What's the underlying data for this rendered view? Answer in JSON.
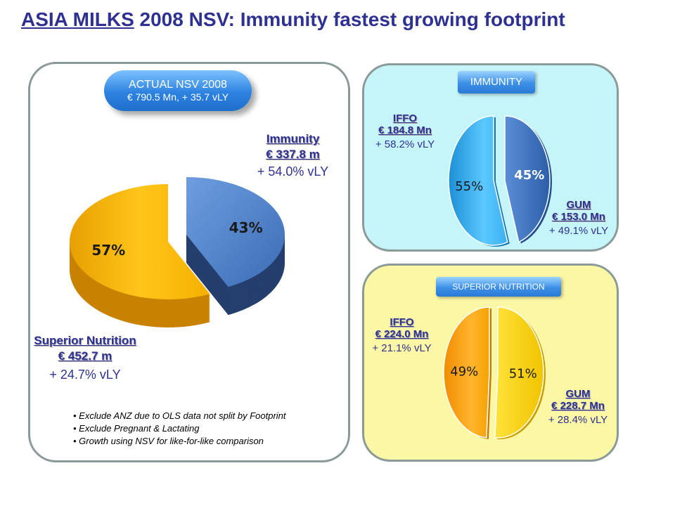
{
  "title": {
    "underlined": "ASIA MILKS",
    "rest": " 2008 NSV: Immunity fastest growing footprint"
  },
  "actual": {
    "line1": "ACTUAL NSV 2008",
    "line2": "€ 790.5 Mn, + 35.7 vLY"
  },
  "main_labels": {
    "immunity": {
      "name": "Immunity",
      "value": "€ 337.8 m",
      "growth": "+ 54.0% vLY"
    },
    "superior": {
      "name": "Superior Nutrition",
      "value": "€ 452.7 m",
      "growth": "+ 24.7% vLY"
    }
  },
  "immunity_panel": {
    "tag": "IMMUNITY",
    "ffo": {
      "name": "IFFO",
      "value": "€ 184.8 Mn",
      "growth": "+ 58.2% vLY"
    },
    "gum": {
      "name": "GUM",
      "value": "€ 153.0 Mn",
      "growth": "+ 49.1% vLY"
    }
  },
  "superior_panel": {
    "tag": "SUPERIOR NUTRITION",
    "ffo": {
      "name": "IFFO",
      "value": "€ 224.0 Mn",
      "growth": "+ 21.1% vLY"
    },
    "gum": {
      "name": "GUM",
      "value": "€ 228.7 Mn",
      "growth": "+ 28.4% vLY"
    }
  },
  "notes": [
    "Exclude ANZ due to OLS data not split by Footprint",
    "Exclude Pregnant & Lactating",
    "Growth using NSV for like-for-like comparison"
  ],
  "chart_data": [
    {
      "type": "pie",
      "title": "ACTUAL NSV 2008",
      "categories": [
        "Immunity",
        "Superior Nutrition"
      ],
      "values": [
        43,
        57
      ],
      "labels": [
        "43%",
        "57%"
      ],
      "colors": [
        "#4a7cc4",
        "#f7b800"
      ]
    },
    {
      "type": "pie",
      "title": "IMMUNITY",
      "categories": [
        "GUM",
        "IFFO"
      ],
      "values": [
        45,
        55
      ],
      "labels": [
        "45%",
        "55%"
      ],
      "colors": [
        "#3f77c0",
        "#2faae8"
      ]
    },
    {
      "type": "pie",
      "title": "SUPERIOR NUTRITION",
      "categories": [
        "GUM",
        "IFFO"
      ],
      "values": [
        51,
        49
      ],
      "labels": [
        "51%",
        "49%"
      ],
      "colors": [
        "#f8d000",
        "#f8a000"
      ]
    }
  ]
}
